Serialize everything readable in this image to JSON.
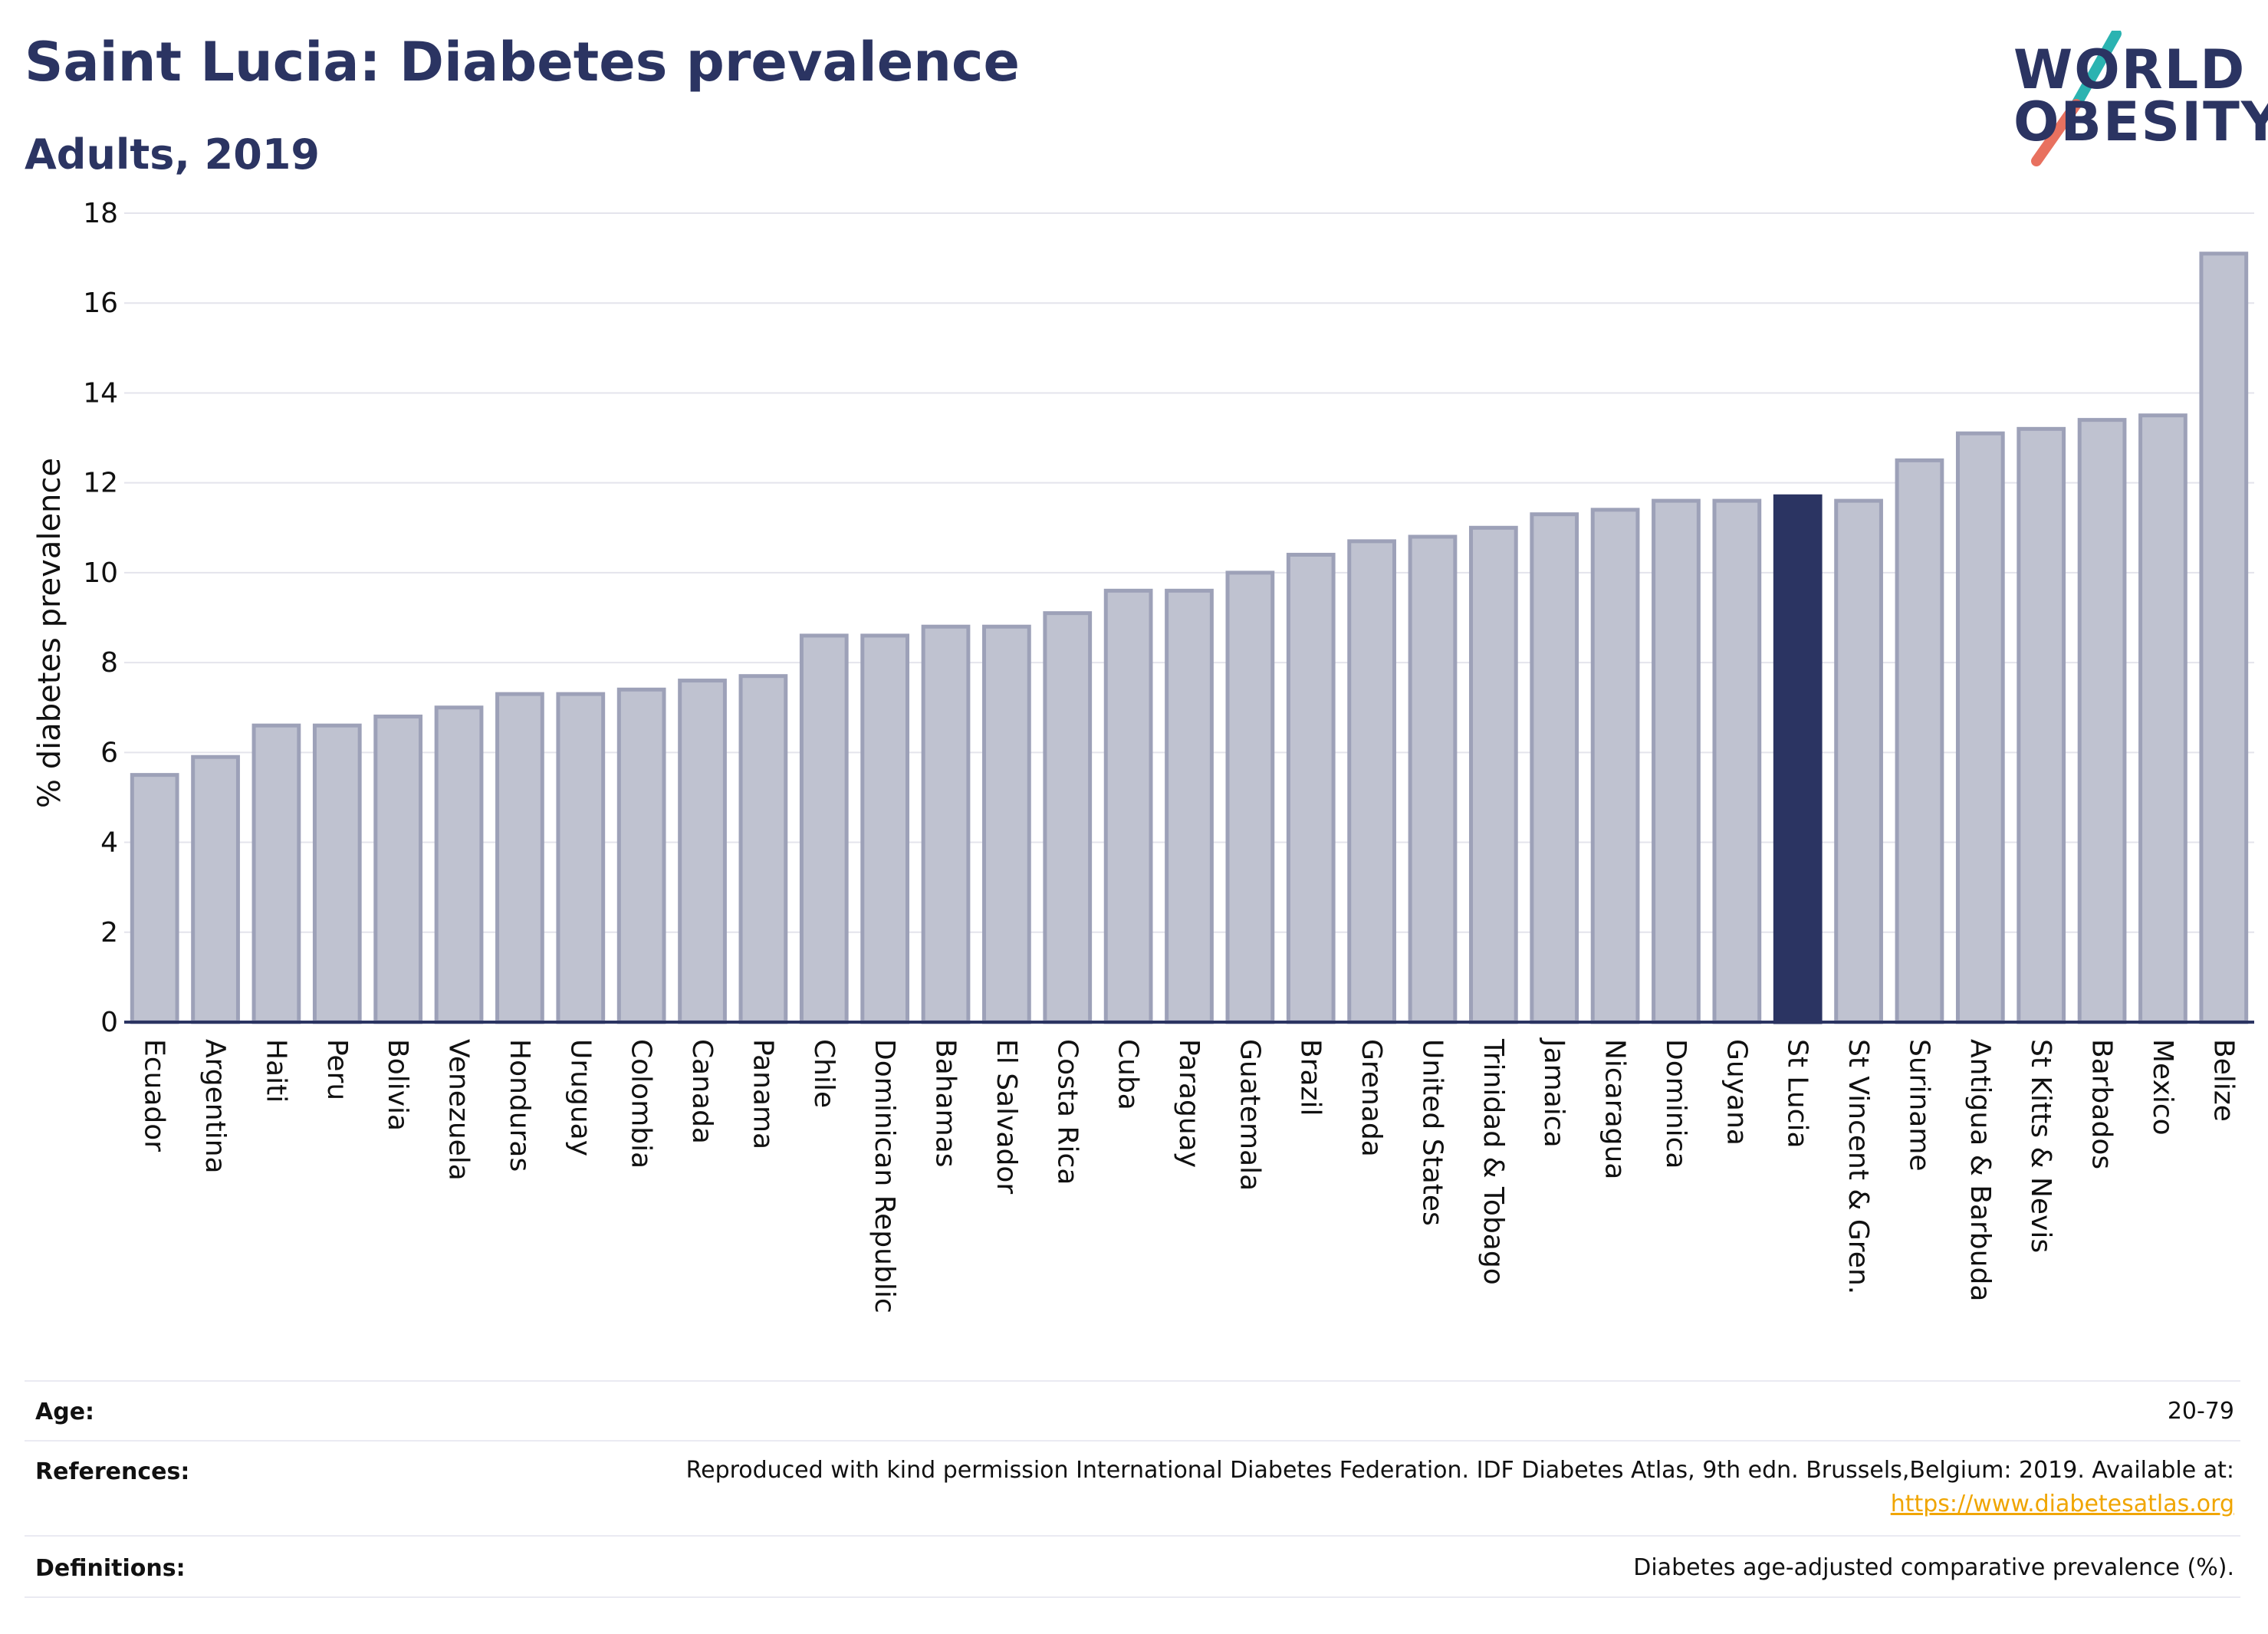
{
  "title": "Saint Lucia: Diabetes prevalence",
  "subtitle": "Adults, 2019",
  "logo": {
    "line1": "WORLD",
    "line2": "OBESITY"
  },
  "colors": {
    "bar_default": "#bfc2d0",
    "bar_border": "#9da1b8",
    "bar_highlight": "#2b3462",
    "title": "#2b3462",
    "logo_slash_teal": "#2bb3b1",
    "logo_slash_coral": "#e8715f",
    "link": "#f0a500"
  },
  "chart_data": {
    "type": "bar",
    "ylabel": "% diabetes prevalence",
    "ylim": [
      0,
      18
    ],
    "yticks": [
      0,
      2,
      4,
      6,
      8,
      10,
      12,
      14,
      16,
      18
    ],
    "grid": true,
    "highlight": "St Lucia",
    "categories": [
      "Ecuador",
      "Argentina",
      "Haiti",
      "Peru",
      "Bolivia",
      "Venezuela",
      "Honduras",
      "Uruguay",
      "Colombia",
      "Canada",
      "Panama",
      "Chile",
      "Dominican Republic",
      "Bahamas",
      "El Salvador",
      "Costa Rica",
      "Cuba",
      "Paraguay",
      "Guatemala",
      "Brazil",
      "Grenada",
      "United States",
      "Trinidad & Tobago",
      "Jamaica",
      "Nicaragua",
      "Dominica",
      "Guyana",
      "St Lucia",
      "St Vincent & Gren.",
      "Suriname",
      "Antigua & Barbuda",
      "St Kitts & Nevis",
      "Barbados",
      "Mexico",
      "Belize"
    ],
    "values": [
      5.5,
      5.9,
      6.6,
      6.6,
      6.8,
      7.0,
      7.3,
      7.3,
      7.4,
      7.6,
      7.7,
      8.6,
      8.6,
      8.8,
      8.8,
      9.1,
      9.6,
      9.6,
      10.0,
      10.4,
      10.7,
      10.8,
      11.0,
      11.3,
      11.4,
      11.6,
      11.6,
      11.7,
      11.6,
      12.5,
      13.1,
      13.2,
      13.4,
      13.5,
      17.1
    ]
  },
  "info": {
    "age_label": "Age:",
    "age_value": "20-79",
    "references_label": "References:",
    "references_text": "Reproduced with kind permission International Diabetes Federation. IDF Diabetes Atlas, 9th edn. Brussels,Belgium: 2019. Available at:",
    "references_link": "https://www.diabetesatlas.org",
    "definitions_label": "Definitions:",
    "definitions_value": "Diabetes age-adjusted comparative prevalence (%)."
  }
}
